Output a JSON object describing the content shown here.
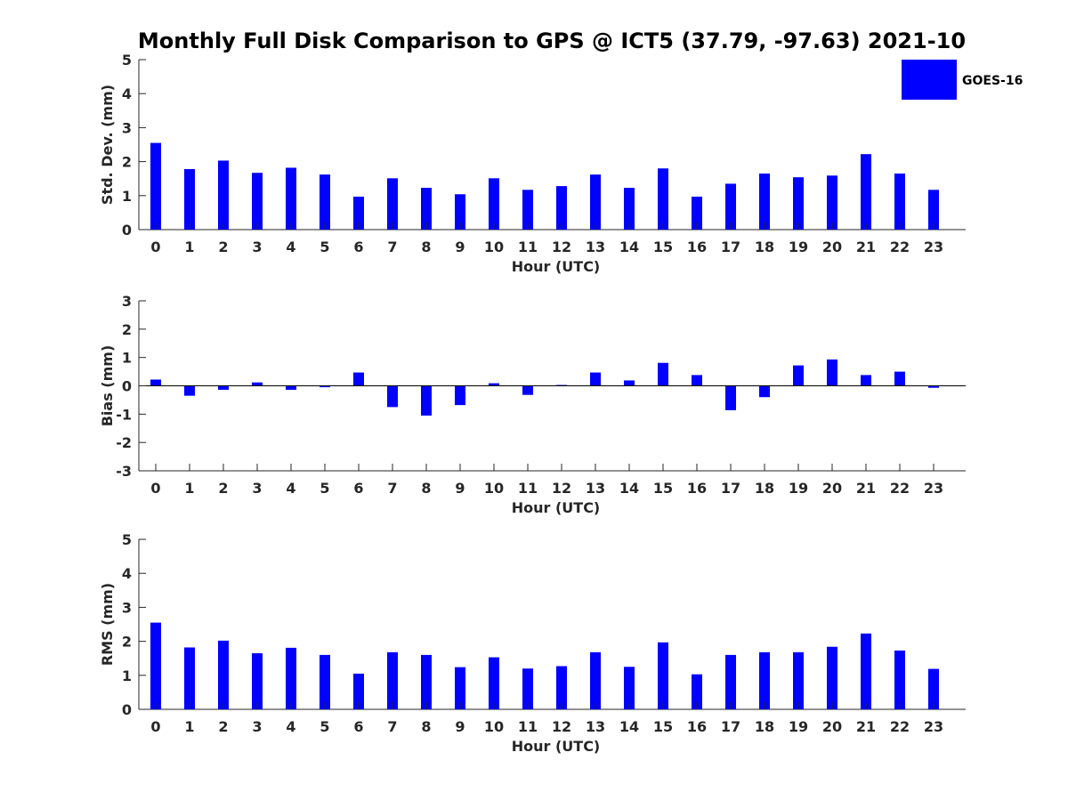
{
  "title": "Monthly Full Disk Comparison to GPS @ ICT5 (37.79, -97.63) 2021-10",
  "legend": {
    "label": "GOES-16",
    "color": "#0000ff",
    "placement": "top-right"
  },
  "chart_data": [
    {
      "type": "bar",
      "xlabel": "Hour (UTC)",
      "ylabel": "Std. Dev. (mm)",
      "ylim": [
        0,
        5
      ],
      "yticks": [
        "0",
        "1",
        "2",
        "3",
        "4",
        "5"
      ],
      "categories": [
        "0",
        "1",
        "2",
        "3",
        "4",
        "5",
        "6",
        "7",
        "8",
        "9",
        "10",
        "11",
        "12",
        "13",
        "14",
        "15",
        "16",
        "17",
        "18",
        "19",
        "20",
        "21",
        "22",
        "23"
      ],
      "series": [
        {
          "name": "GOES-16",
          "color": "#0000ff",
          "values": [
            2.55,
            1.78,
            2.03,
            1.67,
            1.82,
            1.62,
            0.97,
            1.51,
            1.23,
            1.04,
            1.51,
            1.17,
            1.28,
            1.62,
            1.23,
            1.8,
            0.97,
            1.35,
            1.65,
            1.54,
            1.59,
            2.22,
            1.65,
            1.17
          ]
        }
      ]
    },
    {
      "type": "bar",
      "xlabel": "Hour (UTC)",
      "ylabel": "Bias (mm)",
      "ylim": [
        -3,
        3
      ],
      "yticks": [
        "-3",
        "-2",
        "-1",
        "0",
        "1",
        "2",
        "3"
      ],
      "categories": [
        "0",
        "1",
        "2",
        "3",
        "4",
        "5",
        "6",
        "7",
        "8",
        "9",
        "10",
        "11",
        "12",
        "13",
        "14",
        "15",
        "16",
        "17",
        "18",
        "19",
        "20",
        "21",
        "22",
        "23"
      ],
      "series": [
        {
          "name": "GOES-16",
          "color": "#0000ff",
          "values": [
            0.22,
            -0.35,
            -0.14,
            0.12,
            -0.14,
            -0.05,
            0.47,
            -0.75,
            -1.05,
            -0.68,
            0.09,
            -0.32,
            0.03,
            0.47,
            0.19,
            0.81,
            0.38,
            -0.86,
            -0.4,
            0.72,
            0.93,
            0.38,
            0.5,
            -0.07
          ]
        }
      ]
    },
    {
      "type": "bar",
      "xlabel": "Hour (UTC)",
      "ylabel": "RMS (mm)",
      "ylim": [
        0,
        5
      ],
      "yticks": [
        "0",
        "1",
        "2",
        "3",
        "4",
        "5"
      ],
      "categories": [
        "0",
        "1",
        "2",
        "3",
        "4",
        "5",
        "6",
        "7",
        "8",
        "9",
        "10",
        "11",
        "12",
        "13",
        "14",
        "15",
        "16",
        "17",
        "18",
        "19",
        "20",
        "21",
        "22",
        "23"
      ],
      "series": [
        {
          "name": "GOES-16",
          "color": "#0000ff",
          "values": [
            2.55,
            1.82,
            2.02,
            1.65,
            1.81,
            1.6,
            1.05,
            1.68,
            1.6,
            1.24,
            1.53,
            1.2,
            1.27,
            1.68,
            1.25,
            1.97,
            1.03,
            1.6,
            1.68,
            1.68,
            1.84,
            2.23,
            1.73,
            1.19
          ]
        }
      ]
    }
  ]
}
